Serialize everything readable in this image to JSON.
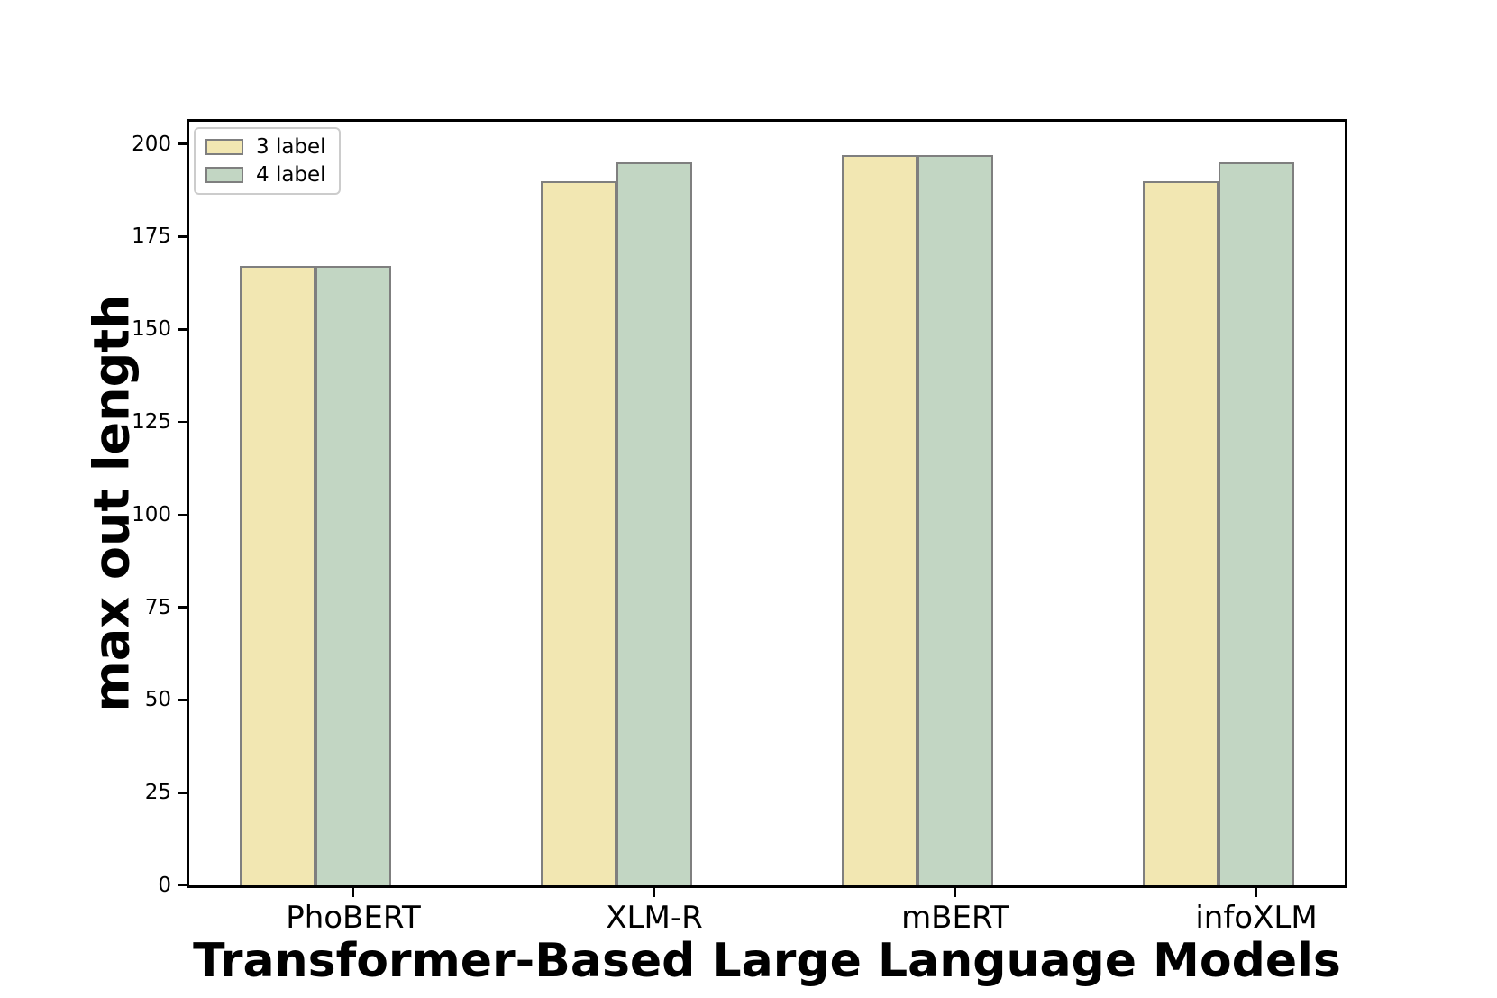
{
  "chart_data": {
    "type": "bar",
    "title": "",
    "xlabel": "Transformer-Based Large Language Models",
    "ylabel": "max out length",
    "categories": [
      "PhoBERT",
      "XLM-R",
      "mBERT",
      "infoXLM"
    ],
    "series": [
      {
        "name": "3 label",
        "values": [
          167,
          190,
          197,
          190
        ],
        "color": "#f2e7b2"
      },
      {
        "name": "4 label",
        "values": [
          167,
          195,
          197,
          195
        ],
        "color": "#c2d6c3"
      }
    ],
    "bar_edge_color": "#7f7f7f",
    "ylim": [
      0,
      206
    ],
    "yticks": [
      0,
      25,
      50,
      75,
      100,
      125,
      150,
      175,
      200
    ],
    "grid": false,
    "legend_position": "upper left",
    "background_color": "#ffffff",
    "axis_color": "#000000"
  }
}
